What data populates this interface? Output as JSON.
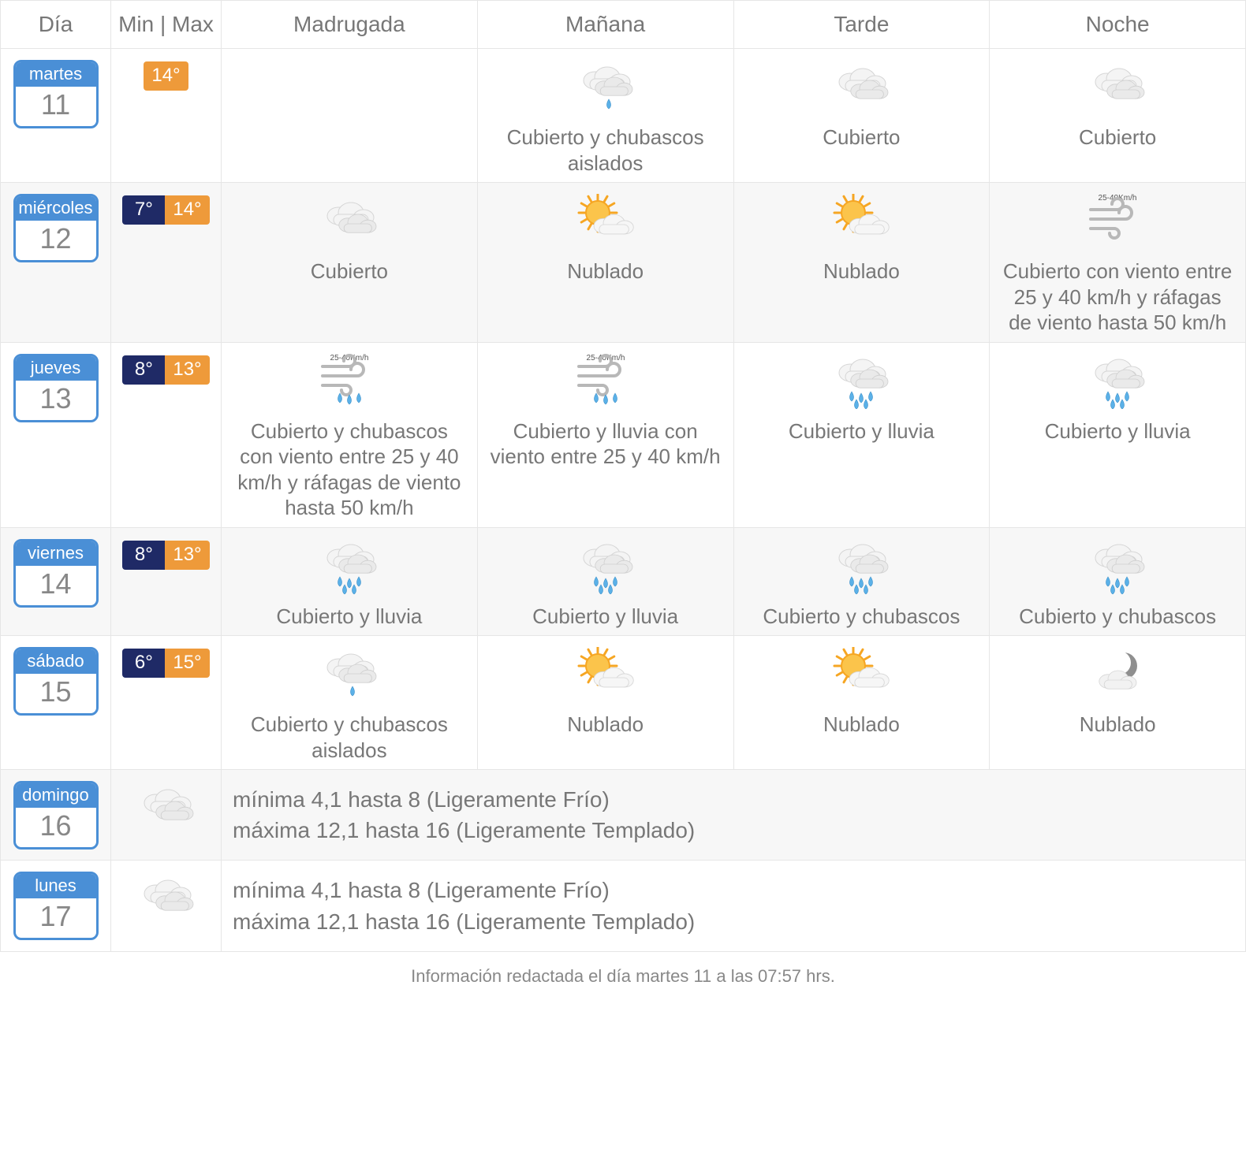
{
  "colors": {
    "border": "#e6e6e6",
    "alt_bg": "#f7f7f7",
    "text": "#777777",
    "card_border": "#4a8fd6",
    "card_header": "#4a8fd6",
    "min_badge": "#1f2a66",
    "max_badge": "#ee9a3a"
  },
  "headers": {
    "day": "Día",
    "temp": "Min | Max",
    "periods": [
      "Madrugada",
      "Mañana",
      "Tarde",
      "Noche"
    ]
  },
  "days": [
    {
      "dow": "martes",
      "num": "11",
      "min": null,
      "max": "14°",
      "periods": [
        {
          "icon": null,
          "text": ""
        },
        {
          "icon": "cloud-drop",
          "text": "Cubierto y chubascos aislados"
        },
        {
          "icon": "clouds",
          "text": "Cubierto"
        },
        {
          "icon": "clouds",
          "text": "Cubierto"
        }
      ]
    },
    {
      "dow": "miércoles",
      "num": "12",
      "min": "7°",
      "max": "14°",
      "periods": [
        {
          "icon": "clouds",
          "text": "Cubierto"
        },
        {
          "icon": "sun-cloud",
          "text": "Nublado"
        },
        {
          "icon": "sun-cloud",
          "text": "Nublado"
        },
        {
          "icon": "wind",
          "wind_label": "25-40Km/h",
          "text": "Cubierto con viento entre 25 y 40 km/h y ráfagas de viento hasta 50 km/h"
        }
      ]
    },
    {
      "dow": "jueves",
      "num": "13",
      "min": "8°",
      "max": "13°",
      "periods": [
        {
          "icon": "wind-rain",
          "wind_label": "25-40Km/h",
          "text": "Cubierto y chubascos con viento entre 25 y 40 km/h y ráfagas de viento hasta 50 km/h"
        },
        {
          "icon": "wind-rain",
          "wind_label": "25-40Km/h",
          "text": "Cubierto y lluvia con viento entre 25 y 40 km/h"
        },
        {
          "icon": "cloud-rain",
          "text": "Cubierto y lluvia"
        },
        {
          "icon": "cloud-rain",
          "text": "Cubierto y lluvia"
        }
      ]
    },
    {
      "dow": "viernes",
      "num": "14",
      "min": "8°",
      "max": "13°",
      "periods": [
        {
          "icon": "cloud-rain",
          "text": "Cubierto y lluvia"
        },
        {
          "icon": "cloud-rain",
          "text": "Cubierto y lluvia"
        },
        {
          "icon": "cloud-rain",
          "text": "Cubierto y chubascos"
        },
        {
          "icon": "cloud-rain",
          "text": "Cubierto y chubascos"
        }
      ]
    },
    {
      "dow": "sábado",
      "num": "15",
      "min": "6°",
      "max": "15°",
      "periods": [
        {
          "icon": "cloud-drop",
          "text": "Cubierto y chubascos aislados"
        },
        {
          "icon": "sun-cloud",
          "text": "Nublado"
        },
        {
          "icon": "sun-cloud",
          "text": "Nublado"
        },
        {
          "icon": "moon-cloud",
          "text": "Nublado"
        }
      ]
    }
  ],
  "summary_days": [
    {
      "dow": "domingo",
      "num": "16",
      "icon": "clouds",
      "line1": "mínima 4,1 hasta 8 (Ligeramente Frío)",
      "line2": "máxima 12,1 hasta 16 (Ligeramente Templado)"
    },
    {
      "dow": "lunes",
      "num": "17",
      "icon": "clouds",
      "line1": "mínima 4,1 hasta 8 (Ligeramente Frío)",
      "line2": "máxima 12,1 hasta 16 (Ligeramente Templado)"
    }
  ],
  "footer": "Información redactada el día martes 11 a las 07:57 hrs."
}
